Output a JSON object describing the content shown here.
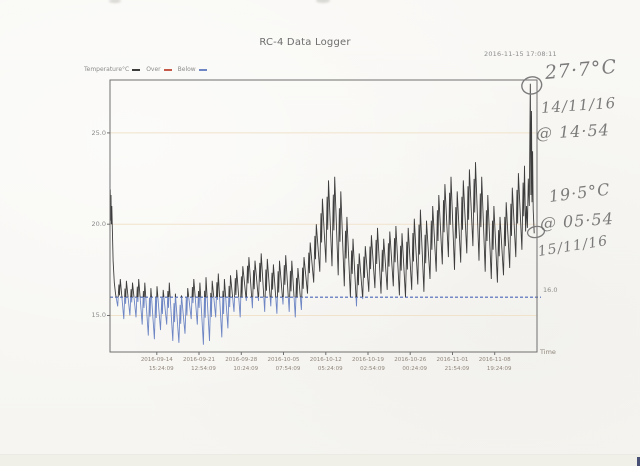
{
  "page": {
    "title": "RC-4 Data Logger",
    "timestamp": "2016-11-15 17:08:11"
  },
  "legend": {
    "temperature_label": "Temperature°C",
    "over_label": "Over",
    "below_label": "Below",
    "temperature_color": "#3d3d3d",
    "over_color": "#c65a4a",
    "below_color": "#6e86c4"
  },
  "annotations": {
    "peak": {
      "line1": "27·7°C",
      "line2": "14/11/16",
      "line3": "@ 14·54"
    },
    "end": {
      "line1": "19·5°C",
      "line2": "@ 05·54",
      "line3": "15/11/16"
    }
  },
  "chart_data": {
    "type": "line",
    "title": "RC-4 Data Logger",
    "xlabel": "Time",
    "ylabel": "",
    "unit": "°C",
    "series_name": "Temperature°C",
    "line_color": "#3d3d3d",
    "below_color": "#6e86c4",
    "grid_color": "#f1e2cb",
    "axis_color": "#6f6f6f",
    "ylim": [
      13,
      27.9
    ],
    "y_tick_values": [
      25,
      20,
      15
    ],
    "y_tick_labels": [
      "25.0",
      "20.0",
      "15.0"
    ],
    "threshold": {
      "value": 16.0,
      "label": "16.0",
      "color": "#4a66b8"
    },
    "x_ticks": [
      {
        "date": "2016-09-14",
        "time": "15:24:09",
        "day": 7.642
      },
      {
        "date": "2016-09-21",
        "time": "12:54:09",
        "day": 14.538
      },
      {
        "date": "2016-09-28",
        "time": "10:24:09",
        "day": 21.434
      },
      {
        "date": "2016-10-05",
        "time": "07:54:09",
        "day": 28.33
      },
      {
        "date": "2016-10-12",
        "time": "05:24:09",
        "day": 35.225
      },
      {
        "date": "2016-10-19",
        "time": "02:54:09",
        "day": 42.121
      },
      {
        "date": "2016-10-26",
        "time": "00:24:09",
        "day": 49.017
      },
      {
        "date": "2016-11-01",
        "time": "21:54:09",
        "day": 55.913
      },
      {
        "date": "2016-11-08",
        "time": "19:24:09",
        "day": 62.809
      }
    ],
    "total_days": 69.714,
    "daily_start": "2016-09-07",
    "daily_min_max": [
      [
        16.3,
        22.0
      ],
      [
        15.5,
        17.0
      ],
      [
        14.8,
        16.9
      ],
      [
        15.0,
        16.8
      ],
      [
        14.9,
        17.0
      ],
      [
        14.5,
        16.8
      ],
      [
        13.9,
        16.5
      ],
      [
        13.7,
        16.6
      ],
      [
        14.2,
        16.4
      ],
      [
        14.5,
        16.8
      ],
      [
        13.6,
        16.2
      ],
      [
        13.5,
        16.1
      ],
      [
        14.0,
        16.5
      ],
      [
        14.8,
        17.0
      ],
      [
        14.5,
        16.8
      ],
      [
        13.4,
        17.1
      ],
      [
        13.6,
        16.9
      ],
      [
        14.9,
        17.3
      ],
      [
        13.8,
        17.0
      ],
      [
        14.3,
        17.2
      ],
      [
        15.2,
        17.5
      ],
      [
        14.9,
        17.7
      ],
      [
        15.8,
        18.2
      ],
      [
        15.4,
        18.0
      ],
      [
        15.8,
        18.4
      ],
      [
        15.2,
        18.1
      ],
      [
        15.5,
        17.8
      ],
      [
        15.1,
        18.0
      ],
      [
        15.6,
        18.3
      ],
      [
        15.2,
        18.0
      ],
      [
        14.9,
        17.6
      ],
      [
        15.3,
        18.2
      ],
      [
        16.2,
        19.0
      ],
      [
        16.8,
        20.0
      ],
      [
        17.4,
        21.4
      ],
      [
        17.9,
        22.4
      ],
      [
        17.7,
        22.6
      ],
      [
        17.2,
        21.8
      ],
      [
        16.6,
        20.4
      ],
      [
        16.0,
        19.2
      ],
      [
        15.5,
        18.4
      ],
      [
        15.9,
        18.8
      ],
      [
        16.3,
        19.4
      ],
      [
        16.5,
        19.8
      ],
      [
        16.2,
        19.2
      ],
      [
        16.4,
        19.6
      ],
      [
        16.6,
        19.9
      ],
      [
        16.1,
        19.5
      ],
      [
        16.0,
        19.8
      ],
      [
        16.4,
        20.3
      ],
      [
        16.7,
        20.8
      ],
      [
        16.3,
        20.2
      ],
      [
        17.0,
        21.0
      ],
      [
        17.4,
        21.6
      ],
      [
        17.8,
        22.2
      ],
      [
        18.2,
        22.6
      ],
      [
        17.5,
        21.8
      ],
      [
        17.9,
        22.4
      ],
      [
        18.4,
        23.0
      ],
      [
        18.8,
        23.4
      ],
      [
        18.0,
        22.6
      ],
      [
        17.4,
        21.6
      ],
      [
        17.0,
        21.0
      ],
      [
        16.8,
        20.4
      ],
      [
        17.2,
        21.2
      ],
      [
        17.6,
        22.0
      ],
      [
        18.2,
        22.8
      ],
      [
        18.6,
        23.2
      ]
    ],
    "lead_in": [
      [
        0.0,
        20.6
      ],
      [
        0.05,
        21.9
      ],
      [
        0.1,
        20.2
      ],
      [
        0.16,
        21.6
      ],
      [
        0.22,
        20.0
      ],
      [
        0.3,
        21.0
      ],
      [
        0.5,
        18.0
      ],
      [
        0.7,
        16.8
      ],
      [
        0.9,
        16.2
      ]
    ],
    "tail": [
      [
        67.85,
        19.6
      ],
      [
        68.0,
        21.0
      ],
      [
        68.15,
        19.8
      ],
      [
        68.3,
        22.5
      ],
      [
        68.45,
        21.0
      ],
      [
        68.62,
        27.7
      ],
      [
        68.72,
        21.6
      ],
      [
        68.82,
        26.2
      ],
      [
        68.9,
        21.2
      ],
      [
        69.0,
        24.0
      ],
      [
        69.1,
        20.8
      ],
      [
        69.25,
        19.5
      ]
    ],
    "annotated_points": [
      {
        "value": 27.7,
        "unit": "°C",
        "datetime": "2016-11-14 14:54"
      },
      {
        "value": 19.5,
        "unit": "°C",
        "datetime": "2016-11-15 05:54"
      }
    ]
  }
}
